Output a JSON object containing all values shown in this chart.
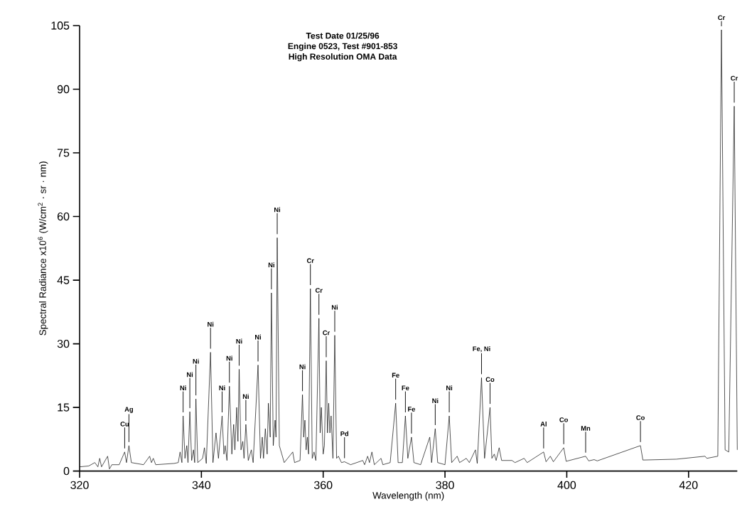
{
  "chart_data": {
    "type": "line",
    "title": "Test Date 01/25/96",
    "subtitle": "Engine 0523, Test #901-853",
    "xlabel": "Wavelength (nm)",
    "ylabel": "Spectral Radiance x10$^{6}$ (W/cm$^{2}$ · sr · nm)",
    "xlim": [
      320,
      428
    ],
    "xticks": [
      320,
      340,
      360,
      380,
      400,
      420
    ],
    "ylim": [
      0,
      105
    ],
    "yticks": [
      0,
      15,
      30,
      45,
      60,
      75,
      90,
      105
    ],
    "grid": false,
    "marker": "none",
    "line_style": "solid",
    "series": [
      {
        "color": "#000000",
        "x": [
          320,
          321.5,
          322.5,
          323.0,
          323.3,
          323.6,
          324.6,
          324.9,
          325.3,
          326.5,
          327.4,
          327.7,
          328.1,
          328.5,
          330.5,
          331.5,
          331.8,
          332.1,
          332.5,
          335.5,
          336.2,
          336.5,
          336.8,
          337.0,
          337.3,
          337.6,
          337.8,
          338.1,
          338.4,
          338.7,
          338.9,
          339.1,
          339.4,
          340.2,
          340.5,
          340.8,
          341.5,
          341.9,
          342.4,
          342.8,
          343.4,
          343.7,
          343.9,
          344.2,
          344.6,
          345.0,
          345.3,
          345.5,
          345.8,
          346.0,
          346.2,
          346.5,
          346.8,
          347.0,
          347.3,
          347.7,
          348.2,
          348.5,
          349.3,
          349.7,
          350.0,
          350.2,
          350.5,
          350.8,
          351.0,
          351.3,
          351.5,
          351.8,
          352.1,
          352.25,
          352.45,
          352.8,
          353.2,
          353.6,
          355.0,
          355.3,
          356.2,
          356.6,
          356.8,
          357.0,
          357.2,
          357.4,
          357.6,
          357.9,
          358.2,
          358.5,
          358.8,
          359.3,
          359.5,
          359.7,
          360.0,
          360.2,
          360.5,
          360.7,
          360.9,
          361.1,
          361.3,
          361.6,
          361.9,
          362.2,
          362.5,
          363.0,
          363.5,
          364.5,
          366.5,
          366.8,
          367.3,
          367.6,
          368.0,
          368.4,
          369.5,
          369.8,
          371.0,
          371.9,
          372.3,
          373.0,
          373.5,
          373.9,
          374.5,
          374.9,
          376.0,
          377.5,
          377.8,
          378.4,
          378.8,
          380.0,
          380.7,
          381.1,
          382.0,
          382.4,
          383.5,
          384.0,
          385.0,
          385.3,
          386.0,
          386.5,
          387.4,
          387.7,
          388.1,
          388.4,
          388.9,
          389.3,
          391.0,
          391.5,
          393.0,
          393.5,
          396.2,
          396.6,
          397.3,
          397.8,
          399.5,
          399.9,
          403.1,
          403.6,
          404.5,
          405.0,
          412.1,
          412.5,
          418.0,
          422.7,
          423.0,
          424.8,
          425.4,
          426.0,
          426.6,
          427.5,
          428.0
        ],
        "values": [
          1,
          1.2,
          2,
          1,
          3,
          1,
          3.5,
          0.5,
          1.5,
          1.5,
          4.5,
          2,
          6,
          2,
          1.5,
          3.5,
          2,
          3,
          1.5,
          1.8,
          2,
          4.5,
          2,
          13,
          3,
          6,
          2,
          14,
          2.5,
          5,
          2,
          17,
          2,
          3,
          5.5,
          1.8,
          28,
          2,
          9,
          3,
          13,
          4,
          6,
          2.5,
          20,
          4,
          11,
          5,
          15,
          7,
          24,
          5,
          7,
          3,
          11,
          2.5,
          5,
          2,
          25,
          3,
          8,
          3,
          10,
          4,
          16,
          8,
          42,
          6,
          12,
          8,
          55,
          6,
          4,
          2,
          4.5,
          2,
          2.5,
          18,
          8,
          12,
          5,
          8,
          4,
          43,
          3,
          4.5,
          2.5,
          36,
          9,
          15,
          4,
          6,
          26,
          9,
          16,
          9,
          13,
          3,
          32,
          3,
          3.5,
          2,
          2.2,
          1.5,
          2.5,
          1.5,
          3.5,
          2,
          4.5,
          1.5,
          3,
          1.5,
          2,
          16,
          2,
          2,
          13,
          3,
          8,
          2,
          1.5,
          8,
          2,
          10,
          2,
          1.5,
          13,
          2,
          3.5,
          2,
          3,
          2,
          5,
          1.8,
          22,
          3,
          15,
          3,
          4,
          2.5,
          5.5,
          2.5,
          2.5,
          2,
          3,
          2,
          4.5,
          2.2,
          3.5,
          2.2,
          5.5,
          2.3,
          3.5,
          2.4,
          2.7,
          2.4,
          6,
          2.6,
          2.8,
          3.5,
          3,
          3.5,
          104,
          5,
          4.5,
          86,
          5
        ]
      }
    ],
    "annotations": [
      "High Resolution OMA Data",
      {
        "text": "Cu",
        "x": 327.4,
        "y": 4.5
      },
      {
        "text": "Ag",
        "x": 328.1,
        "y": 6
      },
      {
        "text": "Ni",
        "x": 337.0,
        "y": 13
      },
      {
        "text": "Ni",
        "x": 338.1,
        "y": 14
      },
      {
        "text": "Ni",
        "x": 339.1,
        "y": 17
      },
      {
        "text": "Ni",
        "x": 341.5,
        "y": 28
      },
      {
        "text": "Ni",
        "x": 343.4,
        "y": 13
      },
      {
        "text": "Ni",
        "x": 344.6,
        "y": 20
      },
      {
        "text": "Ni",
        "x": 346.2,
        "y": 24
      },
      {
        "text": "Ni",
        "x": 347.3,
        "y": 11
      },
      {
        "text": "Ni",
        "x": 349.3,
        "y": 25
      },
      {
        "text": "Ni",
        "x": 351.5,
        "y": 42
      },
      {
        "text": "Ni",
        "x": 352.45,
        "y": 55
      },
      {
        "text": "Ni",
        "x": 356.6,
        "y": 18
      },
      {
        "text": "Cr",
        "x": 357.9,
        "y": 43
      },
      {
        "text": "Cr",
        "x": 359.3,
        "y": 36
      },
      {
        "text": "Cr",
        "x": 360.5,
        "y": 26
      },
      {
        "text": "Ni",
        "x": 361.9,
        "y": 32
      },
      {
        "text": "Pd",
        "x": 363.5,
        "y": 2.2
      },
      {
        "text": "Fe",
        "x": 371.9,
        "y": 16
      },
      {
        "text": "Fe",
        "x": 373.5,
        "y": 13
      },
      {
        "text": "Fe",
        "x": 374.5,
        "y": 8
      },
      {
        "text": "Ni",
        "x": 378.4,
        "y": 10
      },
      {
        "text": "Ni",
        "x": 380.7,
        "y": 13
      },
      {
        "text": "Fe, Ni",
        "x": 386.0,
        "y": 22
      },
      {
        "text": "Co",
        "x": 387.4,
        "y": 15
      },
      {
        "text": "Al",
        "x": 396.2,
        "y": 4.5
      },
      {
        "text": "Co",
        "x": 399.5,
        "y": 5.5
      },
      {
        "text": "Mn",
        "x": 403.1,
        "y": 3.5
      },
      {
        "text": "Co",
        "x": 412.1,
        "y": 6
      },
      {
        "text": "Cr",
        "x": 425.4,
        "y": 104
      },
      {
        "text": "Cr",
        "x": 427.5,
        "y": 86
      }
    ]
  }
}
